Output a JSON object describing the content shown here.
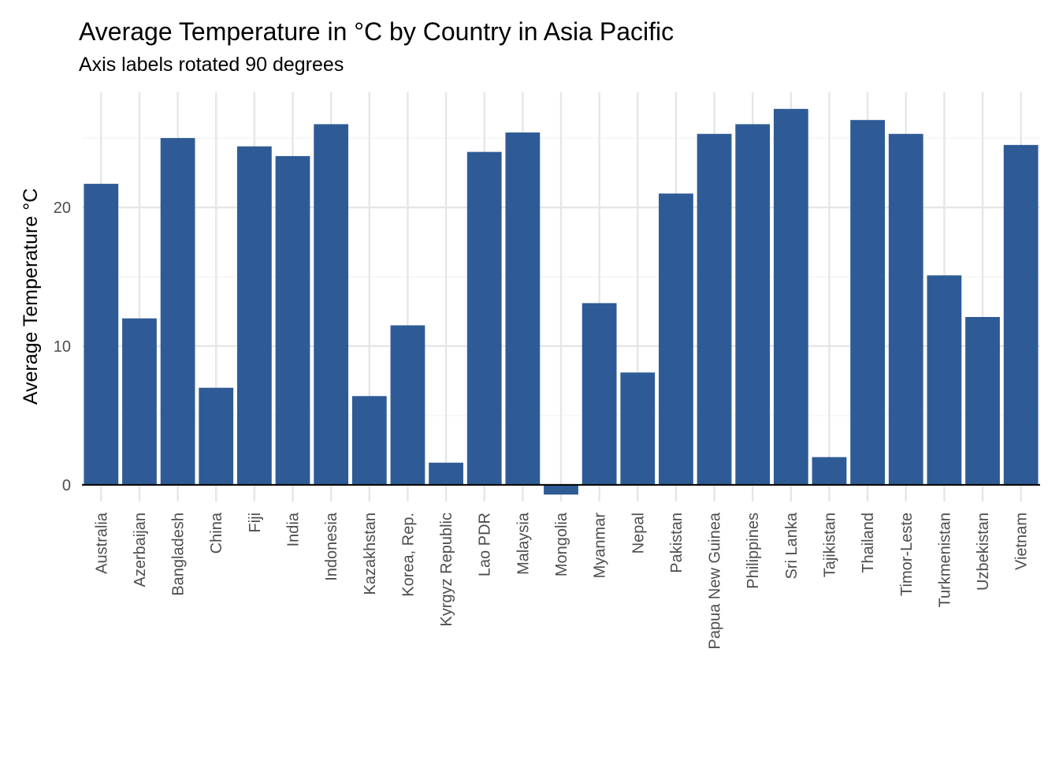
{
  "chart_data": {
    "type": "bar",
    "title": "Average Temperature in °C by Country in Asia Pacific",
    "subtitle": "Axis labels rotated 90 degrees",
    "ylabel": "Average Temperature °C",
    "xlabel": "",
    "ylim": [
      -1.2,
      28.3
    ],
    "yticks": [
      0,
      10,
      20
    ],
    "grid": true,
    "legend": "none",
    "bar_color": "#2E5B96",
    "categories": [
      "Australia",
      "Azerbaijan",
      "Bangladesh",
      "China",
      "Fiji",
      "India",
      "Indonesia",
      "Kazakhstan",
      "Korea, Rep.",
      "Kyrgyz Republic",
      "Lao PDR",
      "Malaysia",
      "Mongolia",
      "Myanmar",
      "Nepal",
      "Pakistan",
      "Papua New Guinea",
      "Philippines",
      "Sri Lanka",
      "Tajikistan",
      "Thailand",
      "Timor-Leste",
      "Turkmenistan",
      "Uzbekistan",
      "Vietnam"
    ],
    "values": [
      21.7,
      12.0,
      25.0,
      7.0,
      24.4,
      23.7,
      26.0,
      6.4,
      11.5,
      1.6,
      24.0,
      25.4,
      -0.7,
      13.1,
      8.1,
      21.0,
      25.3,
      26.0,
      27.1,
      2.0,
      26.3,
      25.3,
      15.1,
      12.1,
      24.5
    ]
  }
}
